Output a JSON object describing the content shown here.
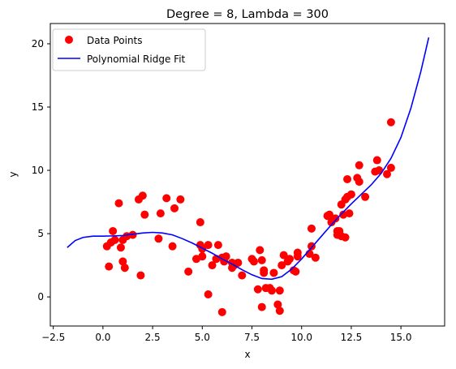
{
  "chart_data": {
    "type": "scatter",
    "title": "Degree = 8, Lambda = 300",
    "xlabel": "x",
    "ylabel": "y",
    "xlim": [
      -2.65,
      17.2
    ],
    "ylim": [
      -2.3,
      21.6
    ],
    "xticks": [
      -2.5,
      0.0,
      2.5,
      5.0,
      7.5,
      10.0,
      12.5,
      15.0
    ],
    "xtick_labels": [
      "−2.5",
      "0.0",
      "2.5",
      "5.0",
      "7.5",
      "10.0",
      "12.5",
      "15.0"
    ],
    "yticks": [
      0,
      5,
      10,
      15,
      20
    ],
    "ytick_labels": [
      "0",
      "5",
      "10",
      "15",
      "20"
    ],
    "grid": false,
    "legend_position": "top-left",
    "series": [
      {
        "name": "Data Points",
        "kind": "scatter",
        "color": "#ff0000",
        "points": [
          [
            0.2,
            4.0
          ],
          [
            0.3,
            2.4
          ],
          [
            0.4,
            4.3
          ],
          [
            0.5,
            5.2
          ],
          [
            0.6,
            4.5
          ],
          [
            0.8,
            7.4
          ],
          [
            0.9,
            3.9
          ],
          [
            1.0,
            2.8
          ],
          [
            1.0,
            4.5
          ],
          [
            1.1,
            2.3
          ],
          [
            1.2,
            4.8
          ],
          [
            1.5,
            4.9
          ],
          [
            1.8,
            7.7
          ],
          [
            1.9,
            1.7
          ],
          [
            2.0,
            8.0
          ],
          [
            2.1,
            6.5
          ],
          [
            2.8,
            4.6
          ],
          [
            2.9,
            6.6
          ],
          [
            3.2,
            7.8
          ],
          [
            3.5,
            4.0
          ],
          [
            3.6,
            7.0
          ],
          [
            3.9,
            7.7
          ],
          [
            4.3,
            2.0
          ],
          [
            4.7,
            3.0
          ],
          [
            4.9,
            5.9
          ],
          [
            4.9,
            4.1
          ],
          [
            5.0,
            3.8
          ],
          [
            5.0,
            3.2
          ],
          [
            5.3,
            0.2
          ],
          [
            5.3,
            4.1
          ],
          [
            5.5,
            2.5
          ],
          [
            5.7,
            3.0
          ],
          [
            5.8,
            4.1
          ],
          [
            6.0,
            -1.2
          ],
          [
            6.0,
            3.1
          ],
          [
            6.1,
            2.8
          ],
          [
            6.2,
            3.2
          ],
          [
            6.5,
            2.7
          ],
          [
            6.5,
            2.3
          ],
          [
            6.6,
            2.5
          ],
          [
            6.8,
            2.7
          ],
          [
            7.0,
            1.7
          ],
          [
            7.5,
            3.0
          ],
          [
            7.6,
            2.8
          ],
          [
            7.8,
            0.6
          ],
          [
            7.9,
            3.7
          ],
          [
            8.0,
            2.9
          ],
          [
            8.0,
            -0.8
          ],
          [
            8.1,
            1.9
          ],
          [
            8.1,
            2.1
          ],
          [
            8.2,
            0.7
          ],
          [
            8.4,
            0.7
          ],
          [
            8.5,
            0.5
          ],
          [
            8.6,
            1.9
          ],
          [
            8.8,
            -0.6
          ],
          [
            8.9,
            0.5
          ],
          [
            8.9,
            -1.1
          ],
          [
            9.0,
            2.5
          ],
          [
            9.1,
            3.3
          ],
          [
            9.3,
            2.8
          ],
          [
            9.4,
            3.0
          ],
          [
            9.6,
            2.1
          ],
          [
            9.7,
            2.0
          ],
          [
            9.8,
            3.2
          ],
          [
            9.8,
            3.5
          ],
          [
            10.4,
            3.4
          ],
          [
            10.5,
            4.0
          ],
          [
            10.5,
            5.4
          ],
          [
            10.7,
            3.1
          ],
          [
            11.3,
            6.4
          ],
          [
            11.4,
            6.5
          ],
          [
            11.5,
            5.9
          ],
          [
            11.7,
            6.2
          ],
          [
            11.8,
            5.2
          ],
          [
            11.8,
            4.9
          ],
          [
            11.9,
            5.2
          ],
          [
            12.0,
            4.8
          ],
          [
            12.0,
            7.3
          ],
          [
            12.1,
            6.5
          ],
          [
            12.2,
            4.7
          ],
          [
            12.2,
            7.7
          ],
          [
            12.3,
            7.9
          ],
          [
            12.3,
            9.3
          ],
          [
            12.4,
            6.6
          ],
          [
            12.5,
            8.1
          ],
          [
            12.8,
            9.4
          ],
          [
            12.9,
            10.4
          ],
          [
            12.9,
            9.1
          ],
          [
            13.2,
            7.9
          ],
          [
            13.7,
            9.9
          ],
          [
            13.8,
            10.8
          ],
          [
            13.9,
            10.0
          ],
          [
            14.3,
            9.7
          ],
          [
            14.5,
            13.8
          ],
          [
            14.5,
            10.2
          ]
        ]
      },
      {
        "name": "Polynomial Ridge Fit",
        "kind": "line",
        "color": "#0000ff",
        "points": [
          [
            -1.8,
            3.9
          ],
          [
            -1.4,
            4.45
          ],
          [
            -1.0,
            4.7
          ],
          [
            -0.5,
            4.8
          ],
          [
            0.0,
            4.8
          ],
          [
            0.5,
            4.82
          ],
          [
            1.0,
            4.85
          ],
          [
            1.5,
            4.95
          ],
          [
            2.0,
            5.05
          ],
          [
            2.5,
            5.1
          ],
          [
            3.0,
            5.05
          ],
          [
            3.5,
            4.9
          ],
          [
            4.0,
            4.6
          ],
          [
            4.5,
            4.25
          ],
          [
            5.0,
            3.85
          ],
          [
            5.5,
            3.45
          ],
          [
            6.0,
            3.0
          ],
          [
            6.5,
            2.6
          ],
          [
            7.0,
            2.15
          ],
          [
            7.5,
            1.75
          ],
          [
            8.0,
            1.45
          ],
          [
            8.5,
            1.4
          ],
          [
            9.0,
            1.6
          ],
          [
            9.5,
            2.2
          ],
          [
            10.0,
            3.0
          ],
          [
            10.5,
            3.9
          ],
          [
            11.0,
            4.8
          ],
          [
            11.5,
            5.7
          ],
          [
            12.0,
            6.55
          ],
          [
            12.5,
            7.35
          ],
          [
            13.0,
            8.1
          ],
          [
            13.5,
            8.85
          ],
          [
            14.0,
            9.75
          ],
          [
            14.5,
            10.95
          ],
          [
            15.0,
            12.6
          ],
          [
            15.5,
            14.9
          ],
          [
            16.0,
            17.8
          ],
          [
            16.4,
            20.5
          ]
        ]
      }
    ]
  }
}
